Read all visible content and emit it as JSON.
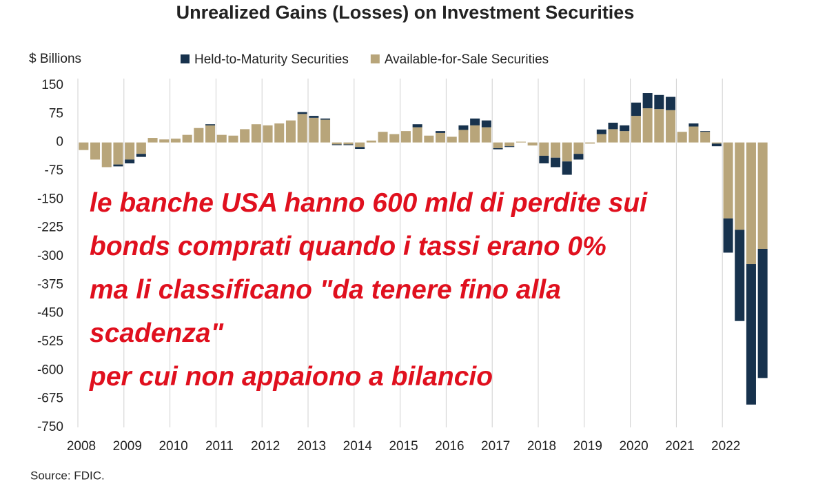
{
  "chart_data": {
    "type": "stacked_bar",
    "title": "Unrealized Gains (Losses) on Investment Securities",
    "y_label": "$ Billions",
    "source": "Source: FDIC.",
    "annotation": [
      "le banche USA hanno 600 mld di perdite sui",
      "bonds comprati quando i tassi erano 0%",
      "ma li classificano \"da tenere fino alla",
      "scadenza\"",
      "per cui non appaiono a bilancio"
    ],
    "annotation_color": "#e0101e",
    "categories": [
      "2008",
      null,
      null,
      null,
      "2009",
      null,
      null,
      null,
      "2010",
      null,
      null,
      null,
      "2011",
      null,
      null,
      null,
      "2012",
      null,
      null,
      null,
      "2013",
      null,
      null,
      null,
      "2014",
      null,
      null,
      null,
      "2015",
      null,
      null,
      null,
      "2016",
      null,
      null,
      null,
      "2017",
      null,
      null,
      null,
      "2018",
      null,
      null,
      null,
      "2019",
      null,
      null,
      null,
      "2020",
      null,
      null,
      null,
      "2021",
      null,
      null,
      null,
      "2022",
      null,
      null,
      null
    ],
    "series": [
      {
        "name": "Held-to-Maturity Securities",
        "color": "#17324d",
        "values": [
          0,
          0,
          0,
          -5,
          -10,
          -8,
          0,
          0,
          0,
          0,
          0,
          3,
          0,
          0,
          0,
          0,
          0,
          0,
          0,
          5,
          5,
          3,
          -2,
          -2,
          -5,
          0,
          0,
          0,
          0,
          8,
          0,
          5,
          0,
          12,
          18,
          18,
          -3,
          -2,
          0,
          0,
          -20,
          -25,
          -35,
          -15,
          0,
          12,
          17,
          15,
          35,
          40,
          37,
          35,
          0,
          8,
          2,
          -7,
          -90,
          -240,
          -370,
          -340
        ]
      },
      {
        "name": "Available-for-Sale Securities",
        "color": "#b8a57a",
        "values": [
          -20,
          -45,
          -65,
          -58,
          -45,
          -30,
          12,
          8,
          10,
          20,
          38,
          45,
          20,
          18,
          35,
          48,
          45,
          50,
          58,
          75,
          65,
          60,
          -5,
          -5,
          -12,
          5,
          28,
          22,
          30,
          40,
          18,
          25,
          15,
          33,
          45,
          40,
          -15,
          -10,
          2,
          -8,
          -35,
          -40,
          -50,
          -30,
          -3,
          22,
          35,
          30,
          70,
          90,
          88,
          85,
          28,
          42,
          28,
          -3,
          -200,
          -230,
          -320,
          -280
        ]
      }
    ],
    "ylim": [
      -750,
      150
    ],
    "yticks": [
      150,
      75,
      0,
      -75,
      -150,
      -225,
      -300,
      -375,
      -450,
      -525,
      -600,
      -675,
      -750
    ],
    "grid": "x"
  }
}
